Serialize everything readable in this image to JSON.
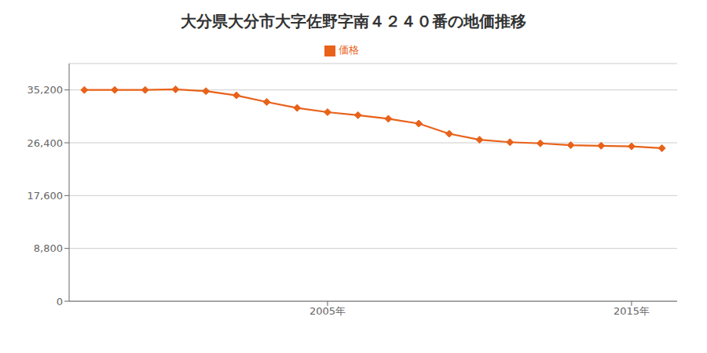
{
  "chart_data": {
    "type": "line",
    "title": "大分県大分市大字佐野字南４２４０番の地価推移",
    "x": [
      1997,
      1998,
      1999,
      2000,
      2001,
      2002,
      2003,
      2004,
      2005,
      2006,
      2007,
      2008,
      2009,
      2010,
      2011,
      2012,
      2013,
      2014,
      2015,
      2016
    ],
    "series": [
      {
        "name": "価格",
        "color": "#E8621A",
        "marker": "diamond",
        "values": [
          35200,
          35200,
          35200,
          35300,
          35000,
          34300,
          33200,
          32200,
          31500,
          31000,
          30400,
          29600,
          27900,
          26900,
          26500,
          26300,
          26000,
          25900,
          25800,
          25500
        ]
      }
    ],
    "xlim": [
      1996.5,
      2016.5
    ],
    "xticks": [
      {
        "value": 2005,
        "label": "2005年"
      },
      {
        "value": 2015,
        "label": "2015年"
      }
    ],
    "ylim": [
      0,
      39600
    ],
    "yticks": [
      0,
      {
        "value": 8800,
        "label": "8,800"
      },
      {
        "value": 17600,
        "label": "17,600"
      },
      {
        "value": 26400,
        "label": "26,400"
      },
      {
        "value": 35200,
        "label": "35,200"
      }
    ],
    "grid": "y",
    "legend": "top"
  }
}
